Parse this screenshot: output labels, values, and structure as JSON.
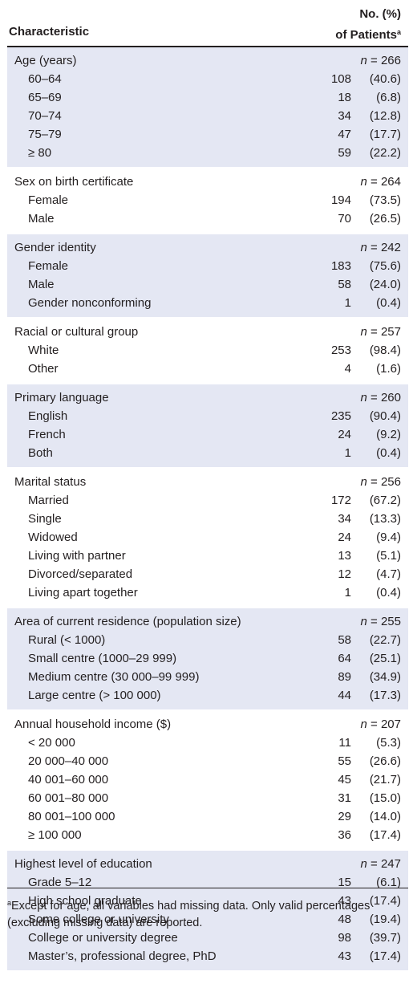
{
  "header": {
    "characteristic": "Characteristic",
    "col_line1": "No. (%)",
    "col_line2": "of Patients",
    "col_sup": "a"
  },
  "sections": [
    {
      "title": "Age (years)",
      "n_label": "n",
      "n_value": "= 266",
      "shaded": true,
      "rows": [
        {
          "label": "60–64",
          "count": "108",
          "pct": "(40.6)"
        },
        {
          "label": "65–69",
          "count": "18",
          "pct": "(6.8)"
        },
        {
          "label": "70–74",
          "count": "34",
          "pct": "(12.8)"
        },
        {
          "label": "75–79",
          "count": "47",
          "pct": "(17.7)"
        },
        {
          "label": "≥ 80",
          "count": "59",
          "pct": "(22.2)"
        }
      ]
    },
    {
      "title": "Sex on birth certificate",
      "n_label": "n",
      "n_value": "= 264",
      "shaded": false,
      "rows": [
        {
          "label": "Female",
          "count": "194",
          "pct": "(73.5)"
        },
        {
          "label": "Male",
          "count": "70",
          "pct": "(26.5)"
        }
      ]
    },
    {
      "title": "Gender identity",
      "n_label": "n",
      "n_value": "= 242",
      "shaded": true,
      "rows": [
        {
          "label": "Female",
          "count": "183",
          "pct": "(75.6)"
        },
        {
          "label": "Male",
          "count": "58",
          "pct": "(24.0)"
        },
        {
          "label": "Gender nonconforming",
          "count": "1",
          "pct": "(0.4)"
        }
      ]
    },
    {
      "title": "Racial or cultural group",
      "n_label": "n",
      "n_value": "= 257",
      "shaded": false,
      "rows": [
        {
          "label": "White",
          "count": "253",
          "pct": "(98.4)"
        },
        {
          "label": "Other",
          "count": "4",
          "pct": "(1.6)"
        }
      ]
    },
    {
      "title": "Primary language",
      "n_label": "n",
      "n_value": "= 260",
      "shaded": true,
      "rows": [
        {
          "label": "English",
          "count": "235",
          "pct": "(90.4)"
        },
        {
          "label": "French",
          "count": "24",
          "pct": "(9.2)"
        },
        {
          "label": "Both",
          "count": "1",
          "pct": "(0.4)"
        }
      ]
    },
    {
      "title": "Marital status",
      "n_label": "n",
      "n_value": "= 256",
      "shaded": false,
      "rows": [
        {
          "label": "Married",
          "count": "172",
          "pct": "(67.2)"
        },
        {
          "label": "Single",
          "count": "34",
          "pct": "(13.3)"
        },
        {
          "label": "Widowed",
          "count": "24",
          "pct": "(9.4)"
        },
        {
          "label": "Living with partner",
          "count": "13",
          "pct": "(5.1)"
        },
        {
          "label": "Divorced/separated",
          "count": "12",
          "pct": "(4.7)"
        },
        {
          "label": "Living apart together",
          "count": "1",
          "pct": "(0.4)"
        }
      ]
    },
    {
      "title": "Area of current residence (population size)",
      "n_label": "n",
      "n_value": "= 255",
      "shaded": true,
      "rows": [
        {
          "label": "Rural (< 1000)",
          "count": "58",
          "pct": "(22.7)"
        },
        {
          "label": "Small centre (1000–29 999)",
          "count": "64",
          "pct": "(25.1)"
        },
        {
          "label": "Medium centre (30 000–99 999)",
          "count": "89",
          "pct": "(34.9)"
        },
        {
          "label": "Large centre (> 100 000)",
          "count": "44",
          "pct": "(17.3)"
        }
      ]
    },
    {
      "title": "Annual household income ($)",
      "n_label": "n",
      "n_value": "= 207",
      "shaded": false,
      "rows": [
        {
          "label": "< 20 000",
          "count": "11",
          "pct": "(5.3)"
        },
        {
          "label": "20 000–40 000",
          "count": "55",
          "pct": "(26.6)"
        },
        {
          "label": "40 001–60 000",
          "count": "45",
          "pct": "(21.7)"
        },
        {
          "label": "60 001–80 000",
          "count": "31",
          "pct": "(15.0)"
        },
        {
          "label": "80 001–100 000",
          "count": "29",
          "pct": "(14.0)"
        },
        {
          "label": "≥ 100 000",
          "count": "36",
          "pct": "(17.4)"
        }
      ]
    },
    {
      "title": "Highest level of education",
      "n_label": "n",
      "n_value": "= 247",
      "shaded": true,
      "rows": [
        {
          "label": "Grade 5–12",
          "count": "15",
          "pct": "(6.1)"
        },
        {
          "label": "High school graduate",
          "count": "43",
          "pct": "(17.4)"
        },
        {
          "label": "Some college or university",
          "count": "48",
          "pct": "(19.4)"
        },
        {
          "label": "College or university degree",
          "count": "98",
          "pct": "(39.7)"
        },
        {
          "label": "Master’s, professional degree, PhD",
          "count": "43",
          "pct": "(17.4)"
        }
      ]
    }
  ],
  "footnote": {
    "marker": "a",
    "text": "Except for age, all variables had missing data. Only valid percentages (excluding missing data) are reported."
  },
  "colors": {
    "shade": "#e4e7f3",
    "text": "#231f20"
  }
}
